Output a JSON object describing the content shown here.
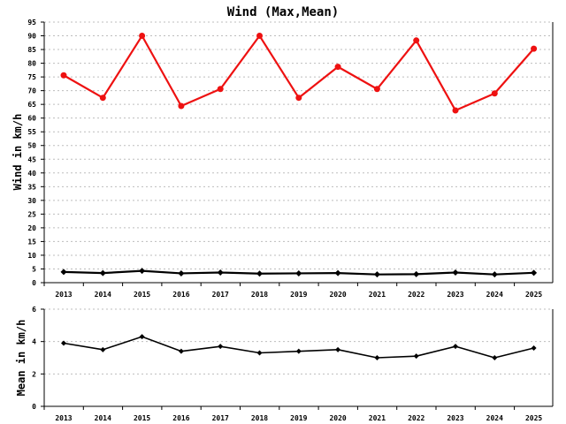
{
  "chart_data": [
    {
      "type": "line",
      "title": "Wind (Max,Mean)",
      "xlabel": "",
      "ylabel": "Wind in km/h",
      "categories": [
        "2013",
        "2014",
        "2015",
        "2016",
        "2017",
        "2018",
        "2019",
        "2020",
        "2021",
        "2022",
        "2023",
        "2024",
        "2025"
      ],
      "ylim": [
        0,
        95
      ],
      "yticks": [
        0,
        5,
        10,
        15,
        20,
        25,
        30,
        35,
        40,
        45,
        50,
        55,
        60,
        65,
        70,
        75,
        80,
        85,
        90,
        95
      ],
      "grid": true,
      "series": [
        {
          "color": "#ee1111",
          "values": [
            75.6,
            67.4,
            90.0,
            64.4,
            70.6,
            90.0,
            67.4,
            78.7,
            70.6,
            88.3,
            62.8,
            69.0,
            85.3
          ]
        },
        {
          "color": "#000000",
          "values": [
            3.9,
            3.5,
            4.3,
            3.4,
            3.7,
            3.3,
            3.4,
            3.5,
            3.0,
            3.1,
            3.7,
            3.0,
            3.6
          ]
        }
      ]
    },
    {
      "type": "line",
      "title": "",
      "xlabel": "",
      "ylabel": "Mean in km/h",
      "categories": [
        "2013",
        "2014",
        "2015",
        "2016",
        "2017",
        "2018",
        "2019",
        "2020",
        "2021",
        "2022",
        "2023",
        "2024",
        "2025"
      ],
      "ylim": [
        0,
        6
      ],
      "yticks": [
        0,
        2,
        4,
        6
      ],
      "grid": true,
      "series": [
        {
          "color": "#000000",
          "values": [
            3.9,
            3.5,
            4.3,
            3.4,
            3.7,
            3.3,
            3.4,
            3.5,
            3.0,
            3.1,
            3.7,
            3.0,
            3.6
          ]
        }
      ]
    }
  ]
}
